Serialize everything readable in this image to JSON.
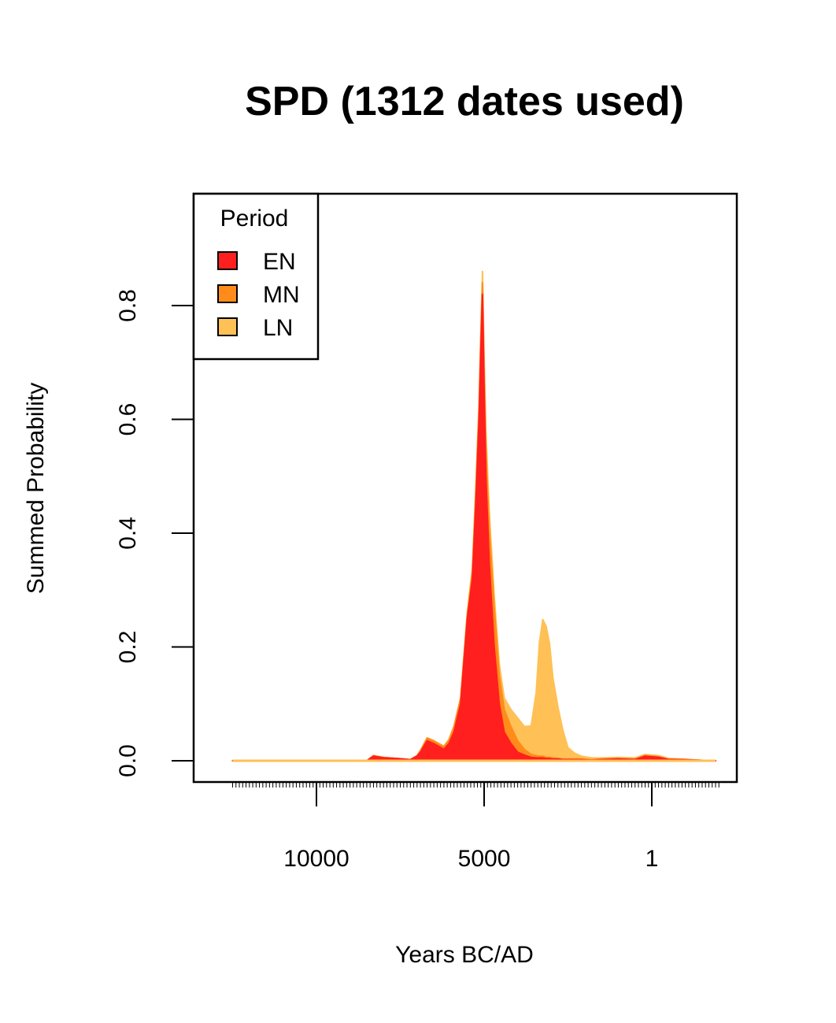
{
  "chart_data": {
    "type": "area",
    "title": "SPD (1312 dates used)",
    "xlabel": "Years BC/AD",
    "ylabel": "Summed Probability",
    "x_axis": {
      "direction": "BC decreasing to the right",
      "xlim": [
        13000,
        -2000
      ],
      "tick_labels": [
        "10000",
        "5000",
        "1"
      ],
      "tick_values": [
        10000,
        5000,
        1
      ]
    },
    "y_axis": {
      "ylim": [
        0,
        0.95
      ],
      "tick_labels": [
        "0.0",
        "0.2",
        "0.4",
        "0.6",
        "0.8"
      ],
      "tick_values": [
        0,
        0.2,
        0.4,
        0.6,
        0.8
      ]
    },
    "legend": {
      "title": "Period",
      "position": "top-left",
      "entries": [
        {
          "label": "EN",
          "color": "#ff1f1f"
        },
        {
          "label": "MN",
          "color": "#ff8c1a"
        },
        {
          "label": "LN",
          "color": "#ffc055"
        }
      ]
    },
    "stacked": true,
    "x": [
      12500,
      9000,
      8500,
      8300,
      8000,
      7600,
      7200,
      7000,
      6900,
      6700,
      6500,
      6200,
      6050,
      5900,
      5700,
      5500,
      5350,
      5250,
      5150,
      5100,
      5050,
      5000,
      4950,
      4850,
      4700,
      4550,
      4400,
      4200,
      4000,
      3800,
      3600,
      3450,
      3350,
      3250,
      3150,
      3050,
      2950,
      2800,
      2650,
      2500,
      2300,
      2100,
      1800,
      1500,
      1000,
      500,
      200,
      -200,
      -500,
      -900,
      -1400,
      -1900
    ],
    "series": [
      {
        "name": "EN",
        "color": "#ff1f1f",
        "values": [
          0,
          0,
          0,
          0.008,
          0.005,
          0.004,
          0.002,
          0.008,
          0.015,
          0.035,
          0.03,
          0.02,
          0.03,
          0.05,
          0.1,
          0.25,
          0.32,
          0.45,
          0.6,
          0.72,
          0.82,
          0.65,
          0.5,
          0.35,
          0.2,
          0.1,
          0.05,
          0.03,
          0.015,
          0.01,
          0.006,
          0.005,
          0.005,
          0.005,
          0.004,
          0.004,
          0.003,
          0.003,
          0.002,
          0.002,
          0.002,
          0.002,
          0.001,
          0.002,
          0.003,
          0.002,
          0.008,
          0.006,
          0.002,
          0.002,
          0.001,
          0
        ]
      },
      {
        "name": "MN",
        "color": "#ff8c1a",
        "values": [
          0,
          0,
          0,
          0.001,
          0.001,
          0,
          0,
          0.001,
          0.003,
          0.005,
          0.005,
          0.005,
          0.007,
          0.01,
          0.01,
          0.01,
          0.01,
          0.02,
          0.02,
          0.02,
          0.02,
          0.03,
          0.05,
          0.06,
          0.07,
          0.05,
          0.04,
          0.03,
          0.02,
          0.01,
          0.005,
          0.004,
          0.003,
          0.003,
          0.002,
          0.002,
          0.002,
          0.001,
          0.001,
          0.001,
          0.001,
          0.001,
          0.001,
          0.001,
          0.001,
          0.001,
          0.001,
          0.001,
          0.001,
          0,
          0,
          0
        ]
      },
      {
        "name": "LN",
        "color": "#ffc055",
        "values": [
          0,
          0,
          0,
          0,
          0,
          0,
          0,
          0,
          0,
          0,
          0,
          0,
          0,
          0,
          0,
          0,
          0.01,
          0.01,
          0.01,
          0.01,
          0.02,
          0.03,
          0.03,
          0.03,
          0.02,
          0.02,
          0.02,
          0.03,
          0.04,
          0.04,
          0.05,
          0.11,
          0.2,
          0.24,
          0.23,
          0.2,
          0.14,
          0.09,
          0.05,
          0.02,
          0.01,
          0.005,
          0.003,
          0.002,
          0.002,
          0.002,
          0.002,
          0.002,
          0.001,
          0.001,
          0,
          0
        ]
      }
    ]
  }
}
